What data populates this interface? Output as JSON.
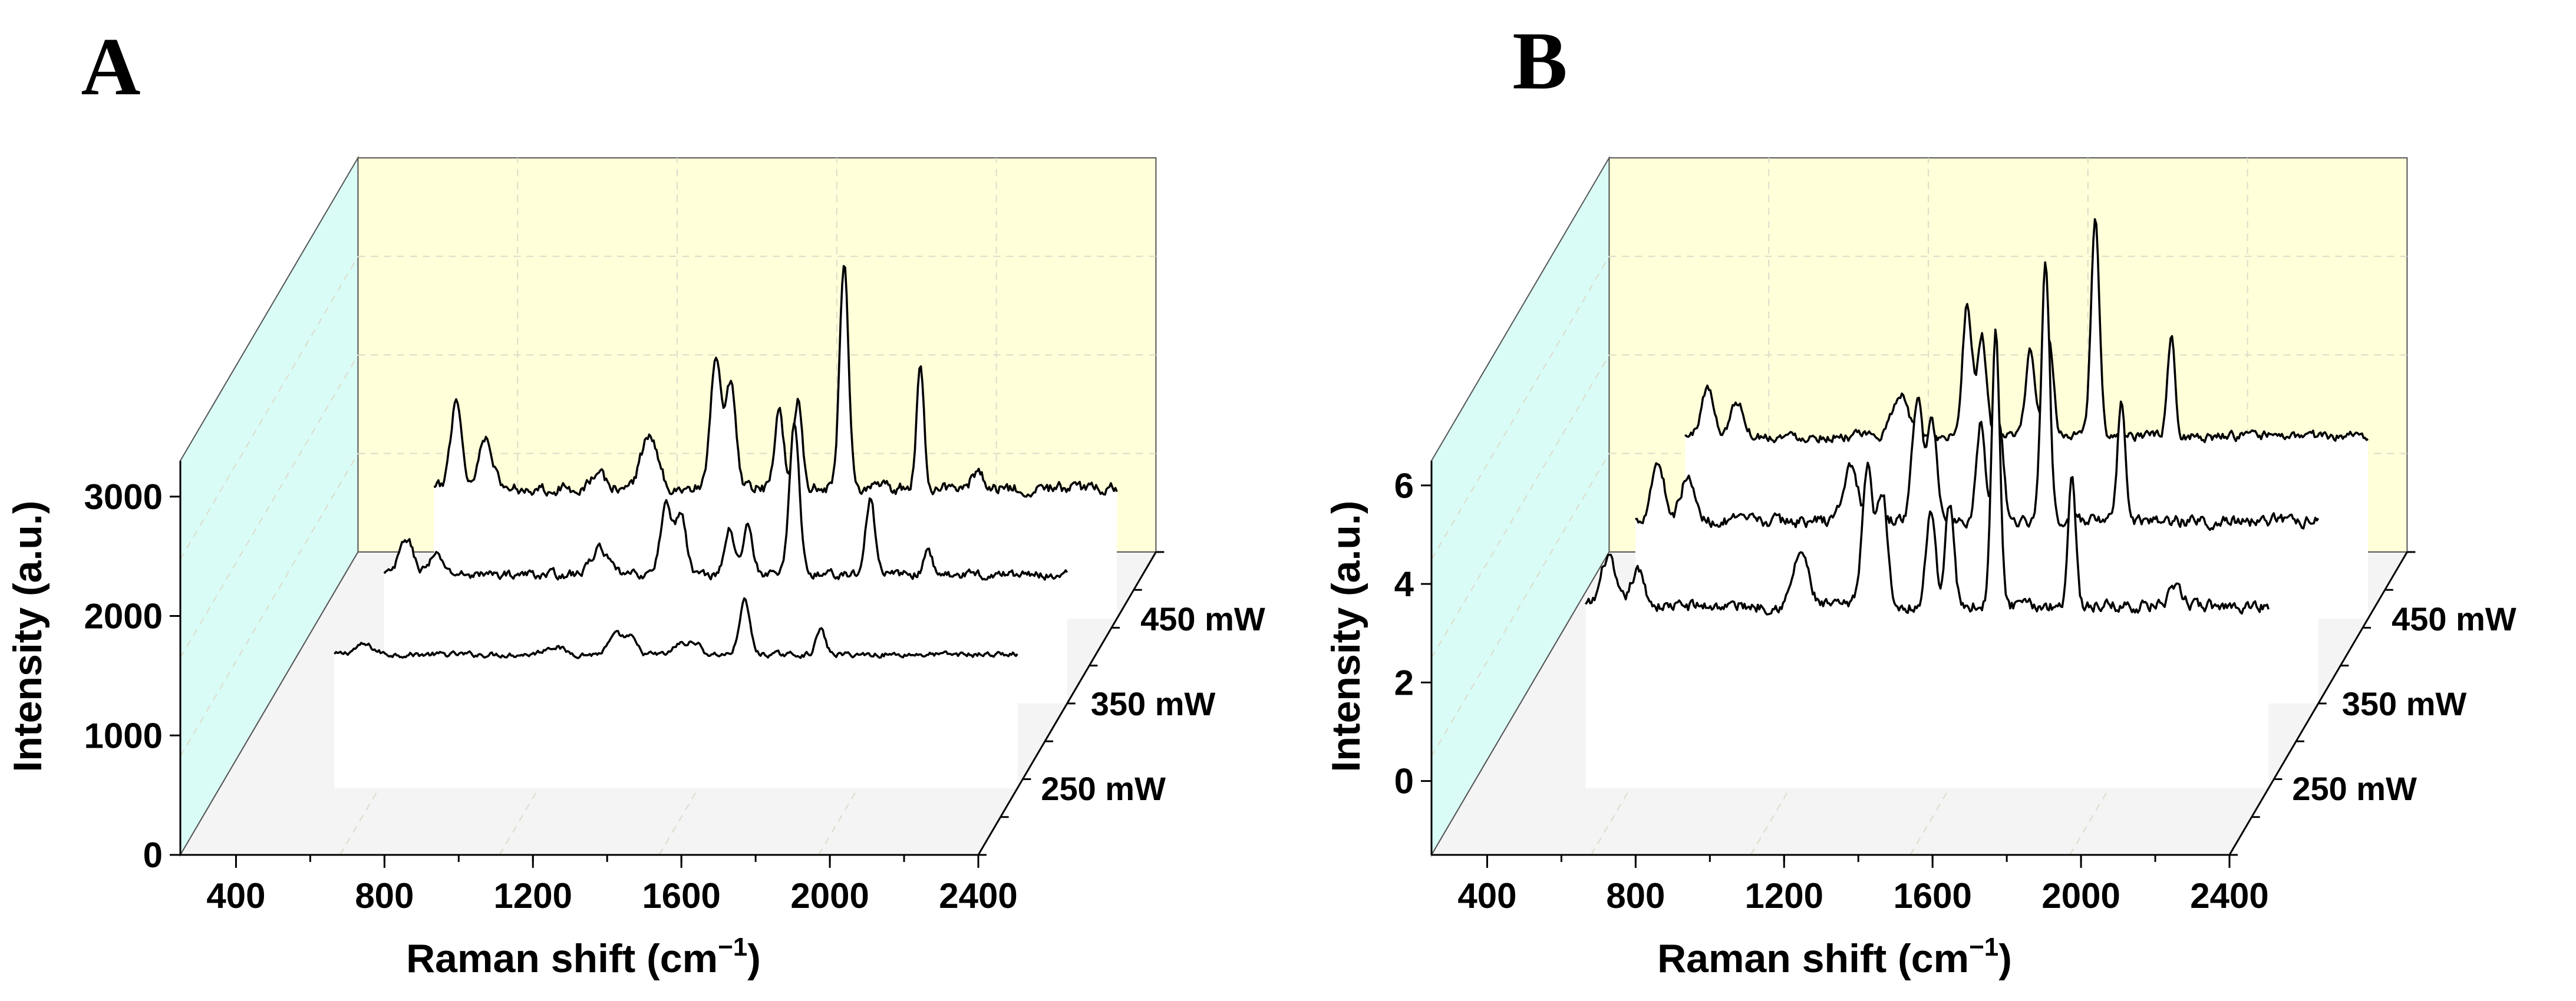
{
  "chart_data": [
    {
      "panel_label": "A",
      "type": "line",
      "title": "",
      "xlabel": "Raman shift (cm",
      "xlabel_sup": "−1",
      "xlabel_close": ")",
      "ylabel": "Intensity (a.u.)",
      "xlim": [
        250,
        2400
      ],
      "xticks": [
        "400",
        "800",
        "1200",
        "1600",
        "2000",
        "2400"
      ],
      "ylim": [
        0,
        3300
      ],
      "yticks": [
        "0",
        "1000",
        "2000",
        "3000"
      ],
      "series": [
        {
          "name": "250 mW",
          "baseline": 1120,
          "noise": 18,
          "peaks": [
            [
              640,
              80,
              25
            ],
            [
              1150,
              70,
              25
            ],
            [
              1320,
              160,
              20
            ],
            [
              1360,
              120,
              15
            ],
            [
              1490,
              90,
              15
            ],
            [
              1530,
              110,
              15
            ],
            [
              1665,
              450,
              14
            ],
            [
              1870,
              210,
              12
            ]
          ]
        },
        {
          "name": "350 mW",
          "baseline": 1080,
          "noise": 30,
          "peaks": [
            [
              620,
              300,
              18
            ],
            [
              700,
              150,
              20
            ],
            [
              1140,
              220,
              22
            ],
            [
              1320,
              600,
              15
            ],
            [
              1360,
              500,
              14
            ],
            [
              1490,
              380,
              13
            ],
            [
              1540,
              420,
              13
            ],
            [
              1665,
              1300,
              13
            ],
            [
              1870,
              650,
              12
            ],
            [
              2025,
              180,
              12
            ]
          ]
        },
        {
          "name": "450 mW",
          "baseline": 1090,
          "noise": 40,
          "peaks": [
            [
              620,
              750,
              15
            ],
            [
              700,
              450,
              18
            ],
            [
              1000,
              120,
              20
            ],
            [
              1140,
              450,
              22
            ],
            [
              1320,
              1100,
              14
            ],
            [
              1360,
              850,
              13
            ],
            [
              1490,
              650,
              12
            ],
            [
              1540,
              750,
              12
            ],
            [
              1665,
              1900,
              12
            ],
            [
              1870,
              1000,
              10
            ],
            [
              2025,
              150,
              15
            ]
          ]
        }
      ]
    },
    {
      "panel_label": "B",
      "type": "line",
      "title": "",
      "xlabel": "Raman shift (cm",
      "xlabel_sup": "−1",
      "xlabel_close": ")",
      "ylabel": "Intensity (a.u.)",
      "xlim": [
        250,
        2400
      ],
      "xticks": [
        "400",
        "800",
        "1200",
        "1600",
        "2000",
        "2400"
      ],
      "ylim": [
        -1.5,
        6.5
      ],
      "yticks": [
        "0",
        "2",
        "4",
        "6"
      ],
      "series": [
        {
          "name": "250 mW",
          "baseline": 2.2,
          "noise": 0.1,
          "peaks": [
            [
              620,
              1.0,
              18
            ],
            [
              700,
              0.7,
              18
            ],
            [
              1140,
              1.1,
              20
            ],
            [
              1320,
              2.8,
              15
            ],
            [
              1360,
              2.3,
              13
            ],
            [
              1490,
              2.0,
              12
            ],
            [
              1540,
              2.1,
              12
            ],
            [
              1665,
              5.5,
              11
            ],
            [
              1870,
              2.7,
              10
            ],
            [
              2150,
              0.3,
              20
            ]
          ]
        },
        {
          "name": "350 mW",
          "baseline": 2.2,
          "noise": 0.1,
          "peaks": [
            [
              620,
              1.2,
              18
            ],
            [
              700,
              0.9,
              18
            ],
            [
              1140,
              1.1,
              20
            ],
            [
              1320,
              2.5,
              14
            ],
            [
              1360,
              2.0,
              13
            ],
            [
              1490,
              2.0,
              12
            ],
            [
              1540,
              2.0,
              12
            ],
            [
              1665,
              5.4,
              11
            ],
            [
              1870,
              2.5,
              10
            ]
          ]
        },
        {
          "name": "450 mW",
          "baseline": 2.2,
          "noise": 0.08,
          "peaks": [
            [
              620,
              1.0,
              16
            ],
            [
              700,
              0.7,
              18
            ],
            [
              1140,
              0.9,
              20
            ],
            [
              1320,
              2.7,
              13
            ],
            [
              1360,
              2.0,
              12
            ],
            [
              1490,
              1.8,
              12
            ],
            [
              1540,
              1.9,
              12
            ],
            [
              1665,
              4.5,
              11
            ],
            [
              1870,
              2.1,
              10
            ]
          ]
        }
      ]
    }
  ]
}
